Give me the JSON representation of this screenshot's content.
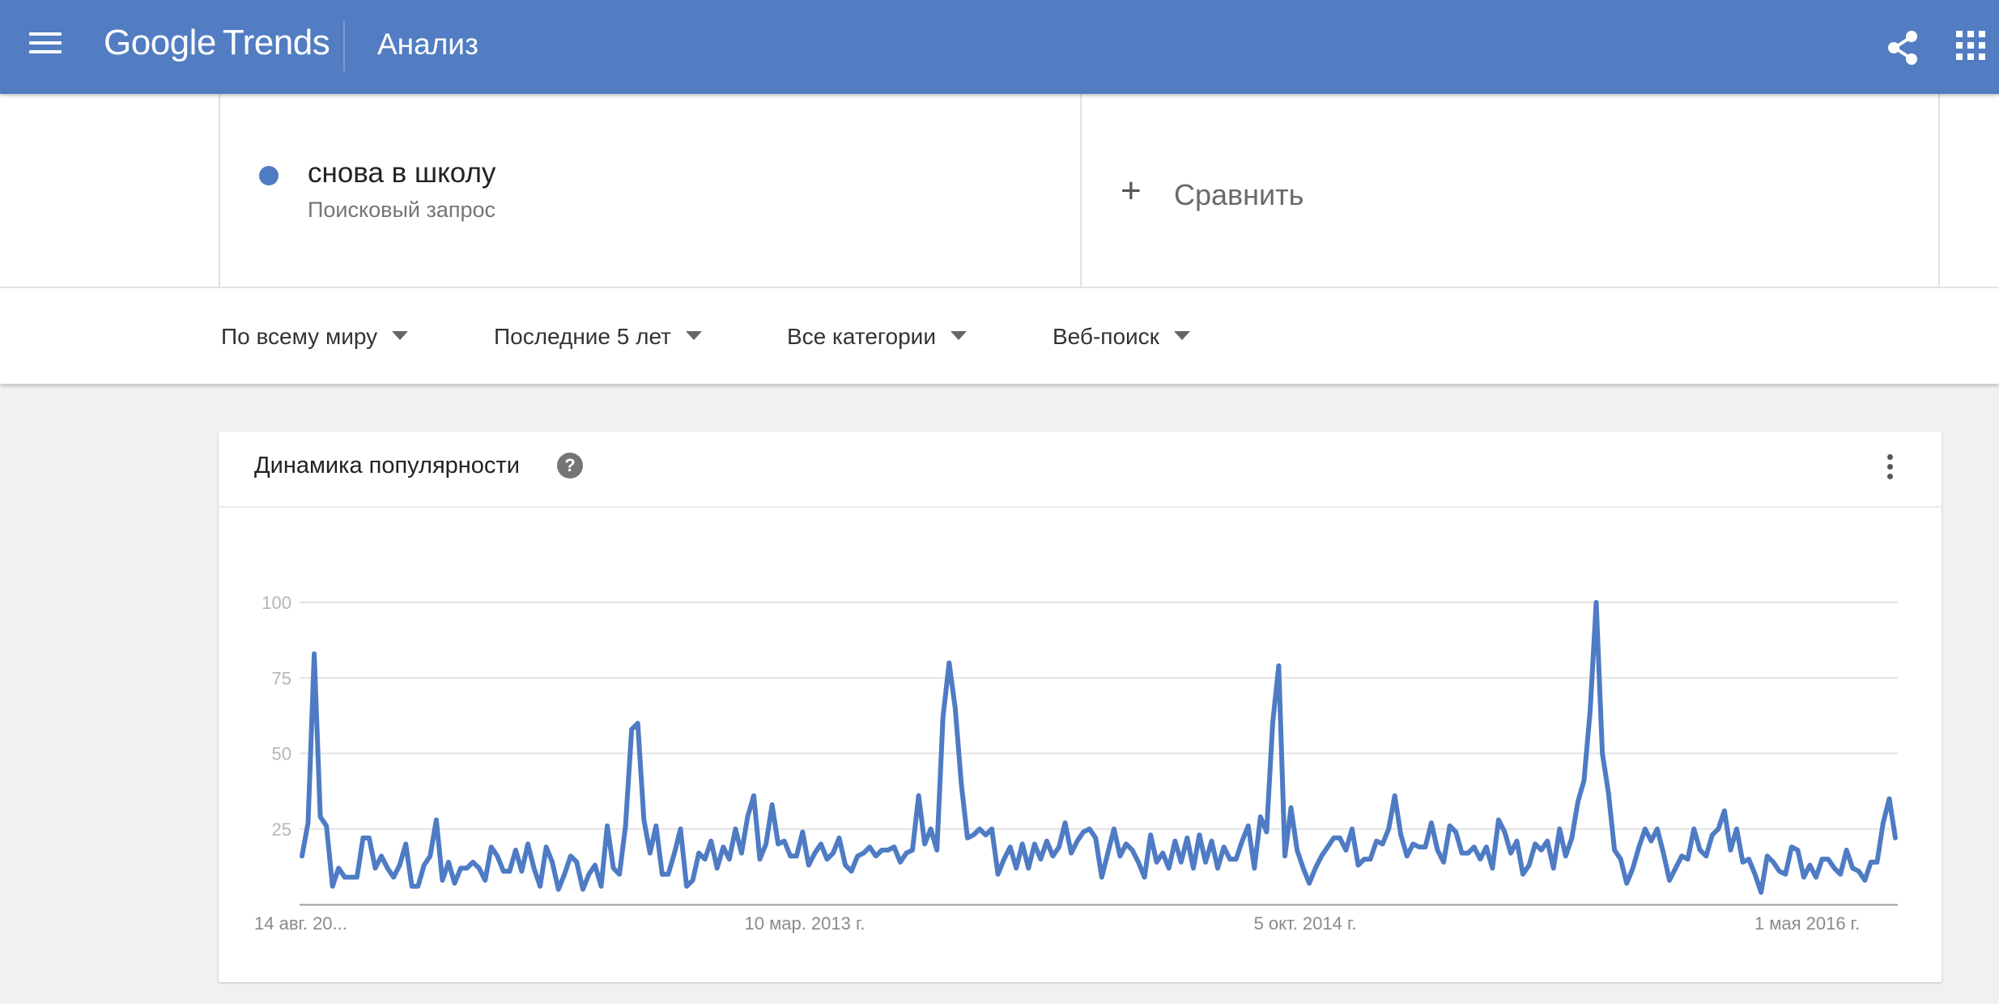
{
  "header": {
    "brand_google": "Google",
    "brand_trends": "Trends",
    "page_title": "Анализ",
    "menu_icon": "hamburger-menu-icon",
    "share_icon": "share-icon",
    "apps_icon": "apps-grid-icon",
    "background_color": "#527dc2"
  },
  "term": {
    "name": "снова в школу",
    "type": "Поисковый запрос",
    "color": "#4e7bc4"
  },
  "compare": {
    "label": "Сравнить",
    "icon": "plus-icon"
  },
  "filters": [
    {
      "label": "По всему миру"
    },
    {
      "label": "Последние 5 лет"
    },
    {
      "label": "Все категории"
    },
    {
      "label": "Веб-поиск"
    }
  ],
  "chart_card": {
    "title": "Динамика популярности",
    "help_icon": "question-mark-icon",
    "more_icon": "more-vertical-icon"
  },
  "chart_data": {
    "type": "line",
    "title": "Динамика популярности",
    "xlabel": "",
    "ylabel": "",
    "ylim": [
      0,
      100
    ],
    "y_ticks": [
      "100",
      "75",
      "50",
      "25"
    ],
    "x_tick_labels": [
      "14 авг. 20...",
      "10 мар. 2013 г.",
      "5 окт. 2014 г.",
      "1 мая 2016 г."
    ],
    "grid": true,
    "line_color": "#4e7bc4",
    "series": [
      {
        "values": [
          16,
          27,
          83,
          29,
          26,
          6,
          12,
          9,
          9,
          9,
          22,
          22,
          12,
          16,
          12,
          9,
          13,
          20,
          6,
          6,
          13,
          16,
          28,
          8,
          14,
          7,
          12,
          12,
          14,
          12,
          8,
          19,
          16,
          11,
          11,
          18,
          11,
          20,
          12,
          6,
          19,
          14,
          5,
          10,
          16,
          14,
          5,
          10,
          13,
          6,
          26,
          12,
          10,
          26,
          58,
          60,
          28,
          17,
          26,
          10,
          10,
          17,
          25,
          6,
          8,
          17,
          15,
          21,
          12,
          19,
          15,
          25,
          17,
          29,
          36,
          15,
          20,
          33,
          20,
          21,
          16,
          16,
          24,
          13,
          17,
          20,
          15,
          17,
          22,
          13,
          11,
          16,
          17,
          19,
          16,
          18,
          18,
          19,
          14,
          17,
          18,
          36,
          20,
          25,
          18,
          62,
          80,
          65,
          40,
          22,
          23,
          25,
          23,
          25,
          10,
          15,
          19,
          12,
          20,
          12,
          20,
          15,
          21,
          16,
          19,
          27,
          17,
          21,
          24,
          25,
          22,
          9,
          17,
          25,
          16,
          20,
          18,
          14,
          9,
          23,
          14,
          17,
          12,
          21,
          14,
          22,
          12,
          23,
          14,
          21,
          12,
          19,
          15,
          15,
          21,
          26,
          12,
          29,
          24,
          60,
          79,
          16,
          32,
          18,
          12,
          7,
          12,
          16,
          19,
          22,
          22,
          18,
          25,
          13,
          15,
          15,
          21,
          20,
          25,
          36,
          23,
          16,
          20,
          19,
          19,
          27,
          18,
          14,
          26,
          24,
          17,
          17,
          19,
          15,
          19,
          12,
          28,
          24,
          17,
          21,
          10,
          13,
          20,
          18,
          21,
          12,
          25,
          16,
          22,
          34,
          41,
          64,
          100,
          50,
          37,
          18,
          15,
          7,
          12,
          19,
          25,
          21,
          25,
          17,
          8,
          12,
          16,
          15,
          25,
          18,
          16,
          23,
          25,
          31,
          18,
          25,
          14,
          15,
          10,
          4,
          16,
          14,
          11,
          10,
          19,
          18,
          9,
          13,
          9,
          15,
          15,
          12,
          10,
          18,
          12,
          11,
          8,
          14,
          14,
          27,
          35,
          22
        ]
      }
    ]
  }
}
